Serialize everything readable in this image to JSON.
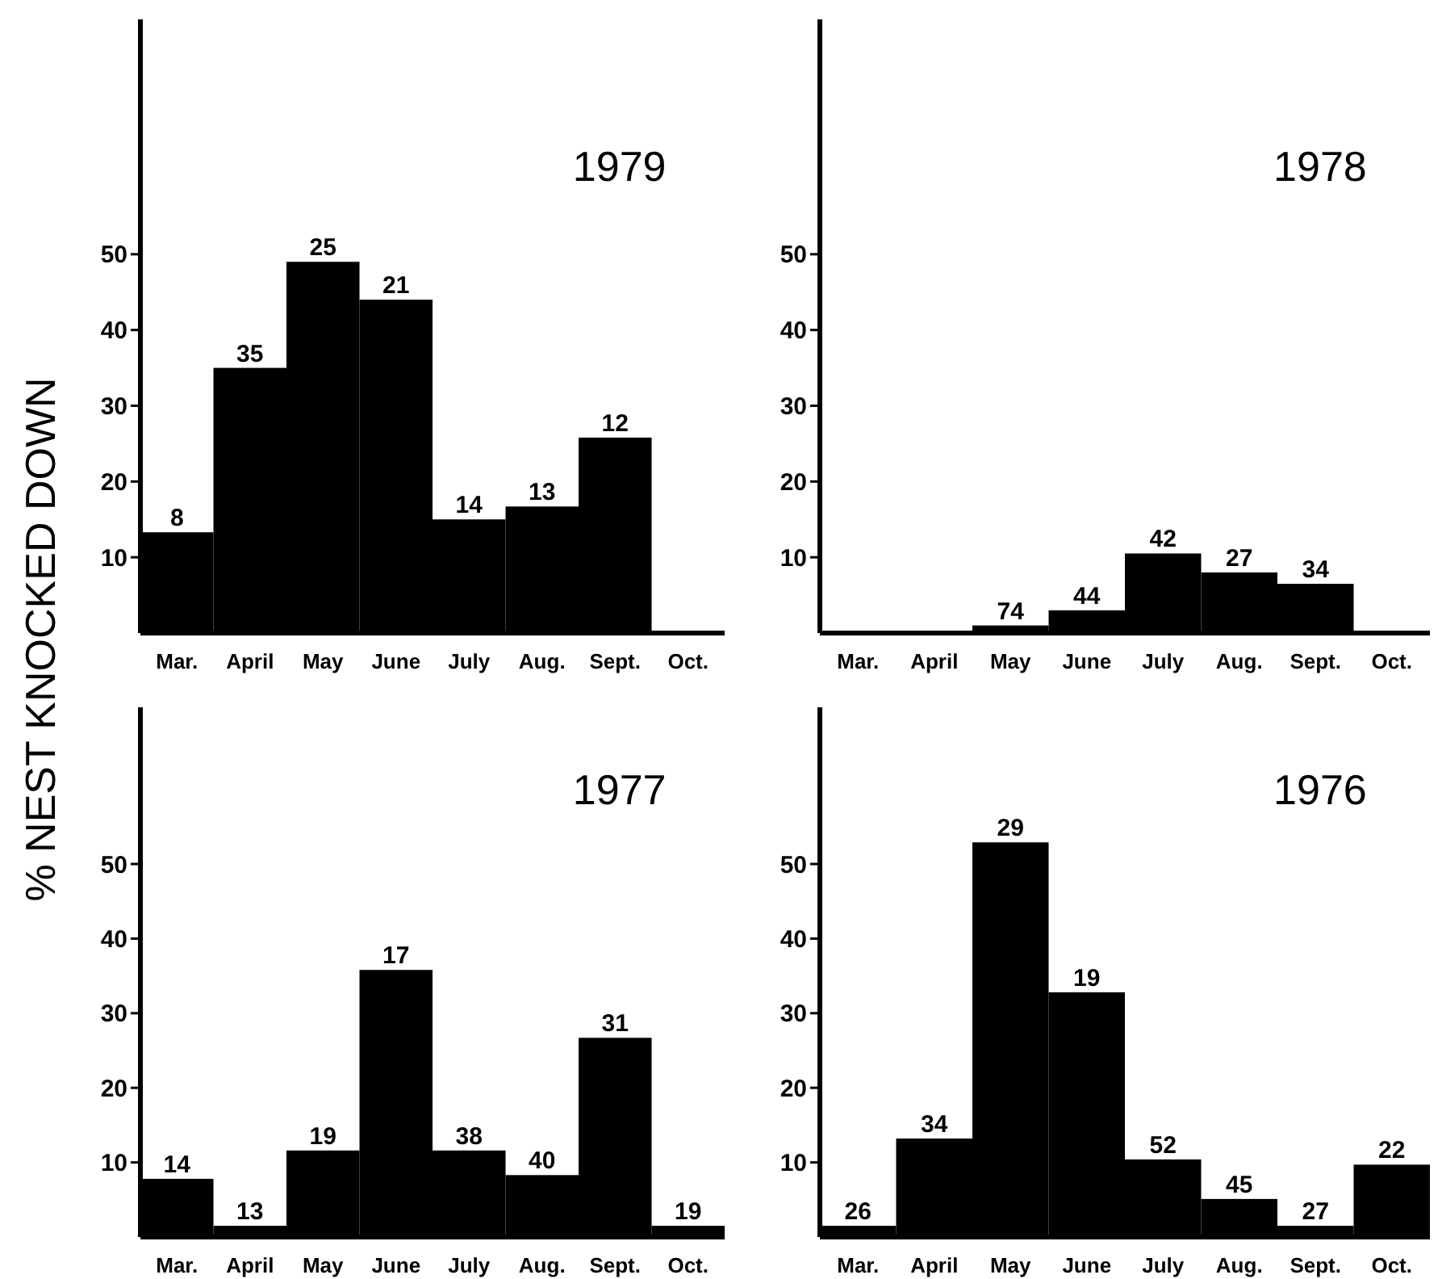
{
  "chart_data": [
    {
      "type": "bar",
      "title": "1979",
      "ylabel": "% NEST KNOCKED DOWN",
      "categories": [
        "Mar.",
        "April",
        "May",
        "June",
        "July",
        "Aug.",
        "Sept.",
        "Oct."
      ],
      "values": [
        13.3,
        35,
        49,
        44,
        15,
        16.7,
        25.8,
        0
      ],
      "color": "#000000",
      "ylim": [
        0,
        81
      ],
      "yticks": [
        10,
        20,
        30,
        40,
        50
      ],
      "annotations": [
        {
          "text": "8",
          "x": "Mar.",
          "y": 13.3
        },
        {
          "text": "35",
          "x": "April",
          "y": 35
        },
        {
          "text": "25",
          "x": "May",
          "y": 49
        },
        {
          "text": "21",
          "x": "June",
          "y": 44
        },
        {
          "text": "14",
          "x": "July",
          "y": 15
        },
        {
          "text": "13",
          "x": "Aug.",
          "y": 16.7
        },
        {
          "text": "12",
          "x": "Sept.",
          "y": 25.8
        }
      ]
    },
    {
      "type": "bar",
      "title": "1978",
      "categories": [
        "Mar.",
        "April",
        "May",
        "June",
        "July",
        "Aug.",
        "Sept.",
        "Oct."
      ],
      "values": [
        0,
        0,
        1,
        3,
        10.5,
        8,
        6.5,
        0
      ],
      "color": "#000000",
      "ylim": [
        0,
        81
      ],
      "yticks": [
        10,
        20,
        30,
        40,
        50
      ],
      "annotations": [
        {
          "text": "74",
          "x": "May",
          "y": 1
        },
        {
          "text": "44",
          "x": "June",
          "y": 3
        },
        {
          "text": "42",
          "x": "July",
          "y": 10.5
        },
        {
          "text": "27",
          "x": "Aug.",
          "y": 8
        },
        {
          "text": "34",
          "x": "Sept.",
          "y": 6.5
        }
      ]
    },
    {
      "type": "bar",
      "title": "1977",
      "categories": [
        "Mar.",
        "April",
        "May",
        "June",
        "July",
        "Aug.",
        "Sept.",
        "Oct."
      ],
      "values": [
        7.8,
        1.5,
        11.6,
        35.8,
        11.6,
        8.3,
        26.7,
        1.5
      ],
      "color": "#000000",
      "ylim": [
        0,
        71
      ],
      "yticks": [
        10,
        20,
        30,
        40,
        50
      ],
      "annotations": [
        {
          "text": "14",
          "x": "Mar.",
          "y": 7.8
        },
        {
          "text": "13",
          "x": "April",
          "y": 1.5
        },
        {
          "text": "19",
          "x": "May",
          "y": 11.6
        },
        {
          "text": "17",
          "x": "June",
          "y": 35.8
        },
        {
          "text": "38",
          "x": "July",
          "y": 11.6
        },
        {
          "text": "40",
          "x": "Aug.",
          "y": 8.3
        },
        {
          "text": "31",
          "x": "Sept.",
          "y": 26.7
        },
        {
          "text": "19",
          "x": "Oct.",
          "y": 1.5
        }
      ]
    },
    {
      "type": "bar",
      "title": "1976",
      "categories": [
        "Mar.",
        "April",
        "May",
        "June",
        "July",
        "Aug.",
        "Sept.",
        "Oct."
      ],
      "values": [
        1.5,
        13.2,
        52.9,
        32.8,
        10.4,
        5.1,
        1.5,
        9.7
      ],
      "color": "#000000",
      "ylim": [
        0,
        71
      ],
      "yticks": [
        10,
        20,
        30,
        40,
        50
      ],
      "annotations": [
        {
          "text": "26",
          "x": "Mar.",
          "y": 1.5
        },
        {
          "text": "34",
          "x": "April",
          "y": 13.2
        },
        {
          "text": "29",
          "x": "May",
          "y": 52.9
        },
        {
          "text": "19",
          "x": "June",
          "y": 32.8
        },
        {
          "text": "52",
          "x": "July",
          "y": 10.4
        },
        {
          "text": "45",
          "x": "Aug.",
          "y": 5.1
        },
        {
          "text": "27",
          "x": "Sept.",
          "y": 1.5
        },
        {
          "text": "22",
          "x": "Oct.",
          "y": 9.7
        }
      ]
    }
  ]
}
